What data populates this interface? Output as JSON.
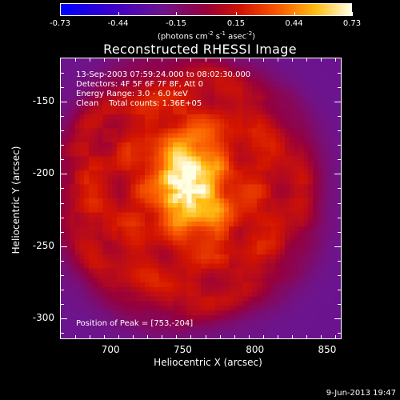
{
  "colorbar": {
    "ticks": [
      "-0.73",
      "-0.44",
      "-0.15",
      "0.15",
      "0.44",
      "0.73"
    ],
    "units_main": "(photons cm",
    "units_exp1": "-2",
    "units_mid1": " s",
    "units_exp2": "-1",
    "units_mid2": " asec",
    "units_exp3": "-2",
    "units_end": ")",
    "min": -0.73,
    "max": 0.73
  },
  "title": "Reconstructed RHESSI Image",
  "annotations": {
    "time": "13-Sep-2003 07:59:24.000 to 08:02:30.000",
    "detectors": "Detectors: 4F 5F 6F 7F 8F, Att 0",
    "energy": "Energy Range: 3.0 - 6.0 keV",
    "clean": "Clean    Total counts: 1.36E+05",
    "peak": "Position of Peak = [753,-204]"
  },
  "axes": {
    "xlabel": "Heliocentric X (arcsec)",
    "ylabel": "Heliocentric Y (arcsec)",
    "xticks": [
      "700",
      "750",
      "800",
      "850"
    ],
    "yticks": [
      "-150",
      "-200",
      "-250",
      "-300"
    ],
    "xlim": [
      665,
      860
    ],
    "ylim": [
      -315,
      -120
    ]
  },
  "image": {
    "peak_x": 753,
    "peak_y": -204,
    "colormap": "rainbow-hot"
  },
  "footer": "9-Jun-2013 19:47"
}
